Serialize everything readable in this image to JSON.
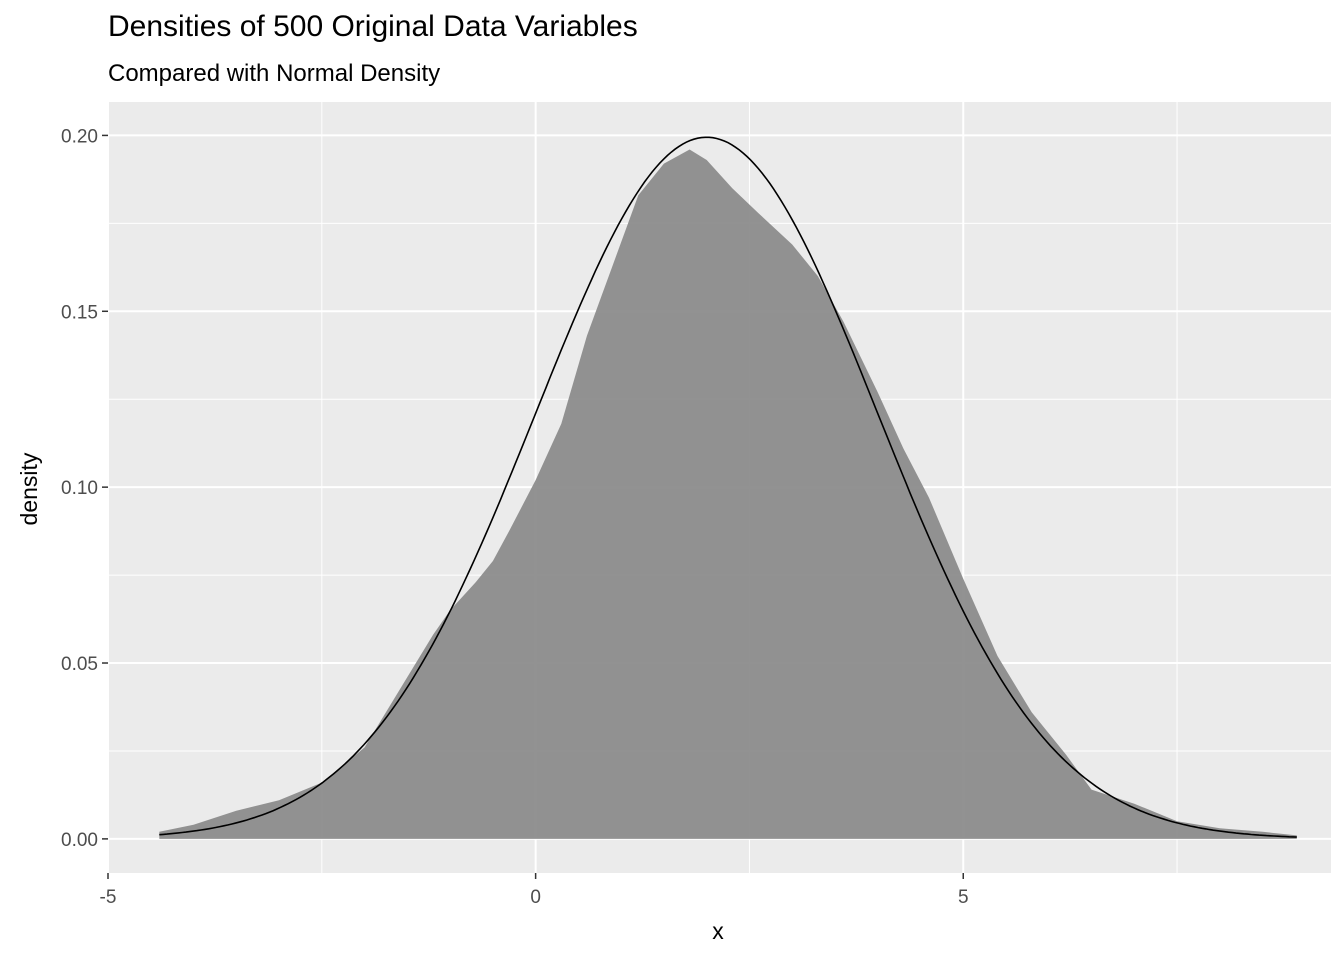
{
  "chart_data": {
    "type": "area",
    "title": "Densities of 500 Original Data Variables",
    "subtitle": "Compared with Normal Density",
    "xlabel": "x",
    "ylabel": "density",
    "xlim": [
      -5,
      9.3
    ],
    "ylim": [
      -0.0097,
      0.2095
    ],
    "x_ticks": [
      -5,
      0,
      5
    ],
    "x_tick_labels": [
      "-5",
      "0",
      "5"
    ],
    "y_ticks": [
      0,
      0.05,
      0.1,
      0.15,
      0.2
    ],
    "y_tick_labels": [
      "0.00",
      "0.05",
      "0.10",
      "0.15",
      "0.20"
    ],
    "grid": true,
    "legend": "none",
    "colors": {
      "panel_background": "#ebebeb",
      "grid_major": "#ffffff",
      "density_fill": "#8c8c8c",
      "normal_line": "#000000",
      "tick_text": "#4d4d4d"
    },
    "series": [
      {
        "kind": "filled-density",
        "x": [
          -4.4,
          -4.0,
          -3.5,
          -3.0,
          -2.5,
          -2.0,
          -1.5,
          -1.2,
          -1.0,
          -0.7,
          -0.5,
          -0.3,
          0.0,
          0.3,
          0.6,
          0.9,
          1.2,
          1.5,
          1.8,
          2.0,
          2.3,
          2.6,
          3.0,
          3.3,
          3.6,
          4.0,
          4.3,
          4.6,
          5.0,
          5.4,
          5.8,
          6.2,
          6.5,
          7.0,
          7.5,
          8.0,
          8.5,
          8.9
        ],
        "y": [
          0.002,
          0.004,
          0.008,
          0.011,
          0.016,
          0.026,
          0.046,
          0.058,
          0.065,
          0.073,
          0.079,
          0.088,
          0.102,
          0.118,
          0.143,
          0.163,
          0.183,
          0.192,
          0.196,
          0.193,
          0.185,
          0.178,
          0.169,
          0.16,
          0.147,
          0.127,
          0.111,
          0.097,
          0.074,
          0.052,
          0.036,
          0.024,
          0.014,
          0.01,
          0.005,
          0.003,
          0.002,
          0.001
        ]
      },
      {
        "kind": "normal-curve",
        "mean": 2,
        "sd": 2,
        "x_range": [
          -4.4,
          8.9
        ]
      }
    ]
  }
}
